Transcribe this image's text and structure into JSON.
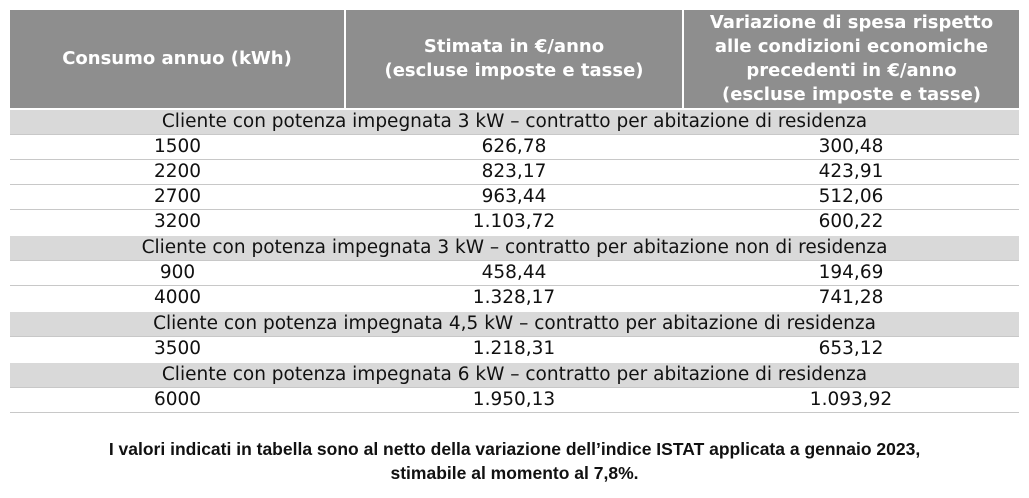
{
  "table": {
    "header": [
      [
        "Consumo annuo (kWh)"
      ],
      [
        "Stimata in €/anno",
        "(escluse imposte e tasse)"
      ],
      [
        "Variazione di spesa rispetto",
        "alle condizioni economiche",
        "precedenti in €/anno",
        "(escluse imposte e tasse)"
      ]
    ],
    "groups": [
      {
        "title": "Cliente con potenza impegnata 3 kW – contratto per abitazione di residenza",
        "rows": [
          [
            "1500",
            "626,78",
            "300,48"
          ],
          [
            "2200",
            "823,17",
            "423,91"
          ],
          [
            "2700",
            "963,44",
            "512,06"
          ],
          [
            "3200",
            "1.103,72",
            "600,22"
          ]
        ]
      },
      {
        "title": "Cliente con potenza impegnata 3 kW – contratto per abitazione non di residenza",
        "rows": [
          [
            "900",
            "458,44",
            "194,69"
          ],
          [
            "4000",
            "1.328,17",
            "741,28"
          ]
        ]
      },
      {
        "title": "Cliente con potenza impegnata 4,5 kW – contratto per abitazione di residenza",
        "rows": [
          [
            "3500",
            "1.218,31",
            "653,12"
          ]
        ]
      },
      {
        "title": "Cliente con potenza impegnata 6 kW – contratto per abitazione di residenza",
        "rows": [
          [
            "6000",
            "1.950,13",
            "1.093,92"
          ]
        ]
      }
    ]
  },
  "note": [
    "I valori indicati in tabella sono al netto della variazione dell’indice ISTAT applicata a gennaio 2023,",
    "stimabile al momento al 7,8%."
  ]
}
